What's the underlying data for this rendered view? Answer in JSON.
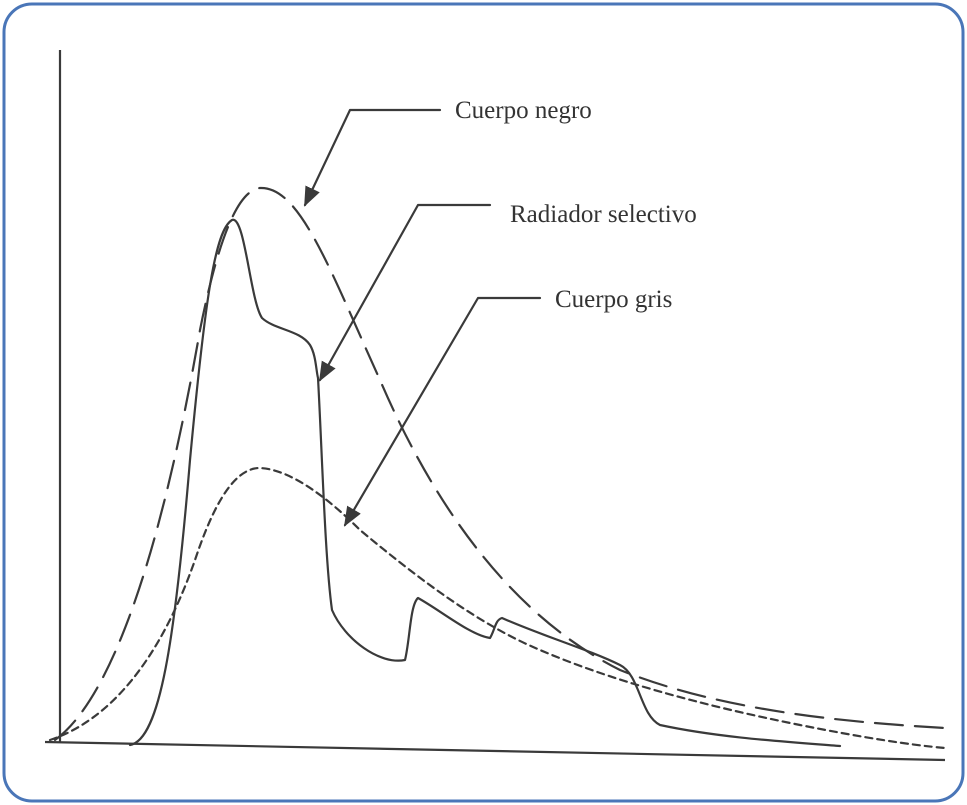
{
  "labels": [
    "Cuerpo negro",
    "Radiador selectivo",
    "Cuerpo gris"
  ]
}
